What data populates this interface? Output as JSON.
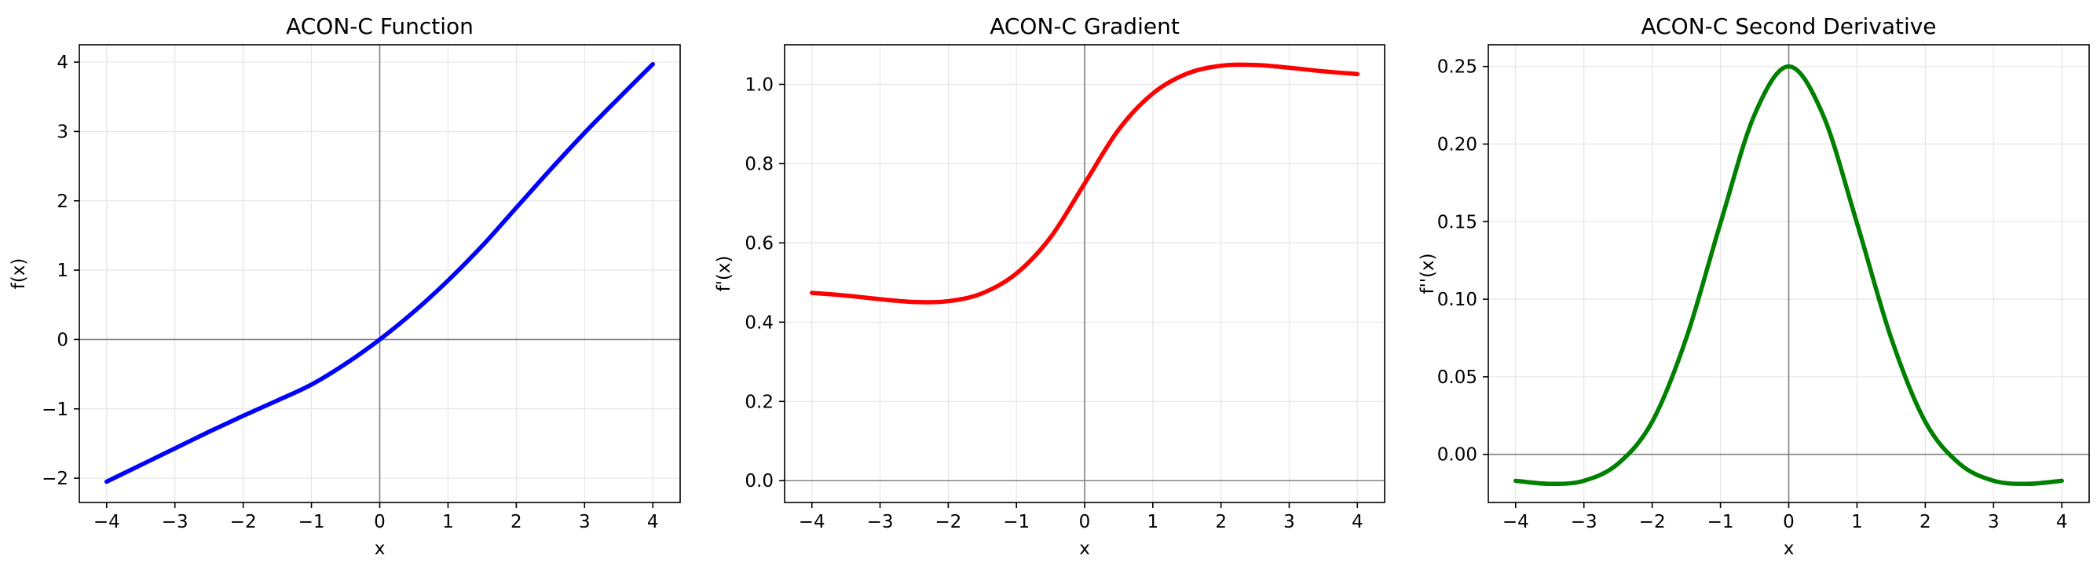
{
  "chart_data": [
    {
      "type": "line",
      "title": "ACON-C Function",
      "xlabel": "x",
      "ylabel": "f(x)",
      "xlim": [
        -4.4,
        4.4
      ],
      "ylim": [
        -2.35,
        4.25
      ],
      "xticks": [
        -4,
        -3,
        -2,
        -1,
        0,
        1,
        2,
        3,
        4
      ],
      "xtick_labels": [
        "−4",
        "−3",
        "−2",
        "−1",
        "0",
        "1",
        "2",
        "3",
        "4"
      ],
      "yticks": [
        -2,
        -1,
        0,
        1,
        2,
        3,
        4
      ],
      "ytick_labels": [
        "−2",
        "−1",
        "0",
        "1",
        "2",
        "3",
        "4"
      ],
      "grid": true,
      "reference_lines": {
        "x": 0,
        "y": 0,
        "color": "#808080"
      },
      "series": [
        {
          "color": "#0000ff",
          "x": [
            -4,
            -3.5,
            -3,
            -2.5,
            -2,
            -1.5,
            -1,
            -0.5,
            0,
            0.5,
            1,
            1.5,
            2,
            2.5,
            3,
            3.5,
            4
          ],
          "y": [
            -2.05,
            -1.81,
            -1.57,
            -1.33,
            -1.1,
            -0.88,
            -0.65,
            -0.35,
            0.0,
            0.4,
            0.85,
            1.35,
            1.9,
            2.45,
            2.98,
            3.48,
            3.97
          ]
        }
      ]
    },
    {
      "type": "line",
      "title": "ACON-C Gradient",
      "xlabel": "x",
      "ylabel": "f'(x)",
      "xlim": [
        -4.4,
        4.4
      ],
      "ylim": [
        -0.055,
        1.1
      ],
      "xticks": [
        -4,
        -3,
        -2,
        -1,
        0,
        1,
        2,
        3,
        4
      ],
      "xtick_labels": [
        "−4",
        "−3",
        "−2",
        "−1",
        "0",
        "1",
        "2",
        "3",
        "4"
      ],
      "yticks": [
        0.0,
        0.2,
        0.4,
        0.6,
        0.8,
        1.0
      ],
      "ytick_labels": [
        "0.0",
        "0.2",
        "0.4",
        "0.6",
        "0.8",
        "1.0"
      ],
      "grid": true,
      "reference_lines": {
        "x": 0,
        "y": 0,
        "color": "#808080"
      },
      "series": [
        {
          "color": "#ff0000",
          "x": [
            -4,
            -3.5,
            -3,
            -2.5,
            -2,
            -1.5,
            -1,
            -0.5,
            0,
            0.5,
            1,
            1.5,
            2,
            2.5,
            3,
            3.5,
            4
          ],
          "y": [
            0.474,
            0.467,
            0.458,
            0.451,
            0.453,
            0.473,
            0.523,
            0.614,
            0.75,
            0.886,
            0.977,
            1.027,
            1.047,
            1.049,
            1.042,
            1.033,
            1.026
          ]
        }
      ]
    },
    {
      "type": "line",
      "title": "ACON-C Second Derivative",
      "xlabel": "x",
      "ylabel": "f''(x)",
      "xlim": [
        -4.4,
        4.4
      ],
      "ylim": [
        -0.031,
        0.264
      ],
      "xticks": [
        -4,
        -3,
        -2,
        -1,
        0,
        1,
        2,
        3,
        4
      ],
      "xtick_labels": [
        "−4",
        "−3",
        "−2",
        "−1",
        "0",
        "1",
        "2",
        "3",
        "4"
      ],
      "yticks": [
        0.0,
        0.05,
        0.1,
        0.15,
        0.2,
        0.25
      ],
      "ytick_labels": [
        "0.00",
        "0.05",
        "0.10",
        "0.15",
        "0.20",
        "0.25"
      ],
      "grid": true,
      "reference_lines": {
        "x": 0,
        "y": 0,
        "color": "#808080"
      },
      "series": [
        {
          "color": "#008000",
          "x": [
            -4,
            -3.5,
            -3,
            -2.5,
            -2,
            -1.5,
            -1,
            -0.5,
            0,
            0.5,
            1,
            1.5,
            2,
            2.5,
            3,
            3.5,
            4
          ],
          "y": [
            -0.017,
            -0.019,
            -0.017,
            -0.006,
            0.021,
            0.075,
            0.149,
            0.219,
            0.25,
            0.219,
            0.149,
            0.075,
            0.021,
            -0.006,
            -0.017,
            -0.019,
            -0.017
          ]
        }
      ]
    }
  ]
}
